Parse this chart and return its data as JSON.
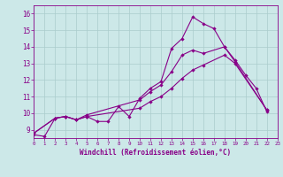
{
  "xlabel": "Windchill (Refroidissement éolien,°C)",
  "background_color": "#cce8e8",
  "grid_color": "#aacccc",
  "line_color": "#880088",
  "xlim": [
    0,
    23
  ],
  "ylim": [
    8.5,
    16.5
  ],
  "xticks": [
    0,
    1,
    2,
    3,
    4,
    5,
    6,
    7,
    8,
    9,
    10,
    11,
    12,
    13,
    14,
    15,
    16,
    17,
    18,
    19,
    20,
    21,
    22,
    23
  ],
  "yticks": [
    9,
    10,
    11,
    12,
    13,
    14,
    15,
    16
  ],
  "series": [
    {
      "x": [
        0,
        1,
        2,
        3,
        4,
        5,
        6,
        7,
        8,
        9,
        10,
        11,
        12,
        13,
        14,
        15,
        16,
        17,
        18,
        19,
        20,
        21,
        22
      ],
      "y": [
        8.7,
        8.6,
        9.7,
        9.8,
        9.6,
        9.8,
        9.5,
        9.5,
        10.4,
        9.8,
        10.9,
        11.5,
        11.9,
        13.9,
        14.5,
        15.8,
        15.4,
        15.1,
        14.0,
        13.2,
        12.3,
        11.5,
        10.1
      ]
    },
    {
      "x": [
        0,
        2,
        3,
        4,
        5,
        10,
        11,
        12,
        13,
        14,
        15,
        16,
        18,
        19,
        22
      ],
      "y": [
        8.8,
        9.7,
        9.8,
        9.6,
        9.9,
        10.8,
        11.3,
        11.7,
        12.5,
        13.5,
        13.8,
        13.6,
        14.0,
        13.1,
        10.2
      ]
    },
    {
      "x": [
        0,
        2,
        3,
        4,
        5,
        10,
        11,
        12,
        13,
        14,
        15,
        16,
        18,
        19,
        22
      ],
      "y": [
        8.8,
        9.7,
        9.8,
        9.6,
        9.8,
        10.3,
        10.7,
        11.0,
        11.5,
        12.1,
        12.6,
        12.9,
        13.5,
        13.0,
        10.2
      ]
    }
  ]
}
